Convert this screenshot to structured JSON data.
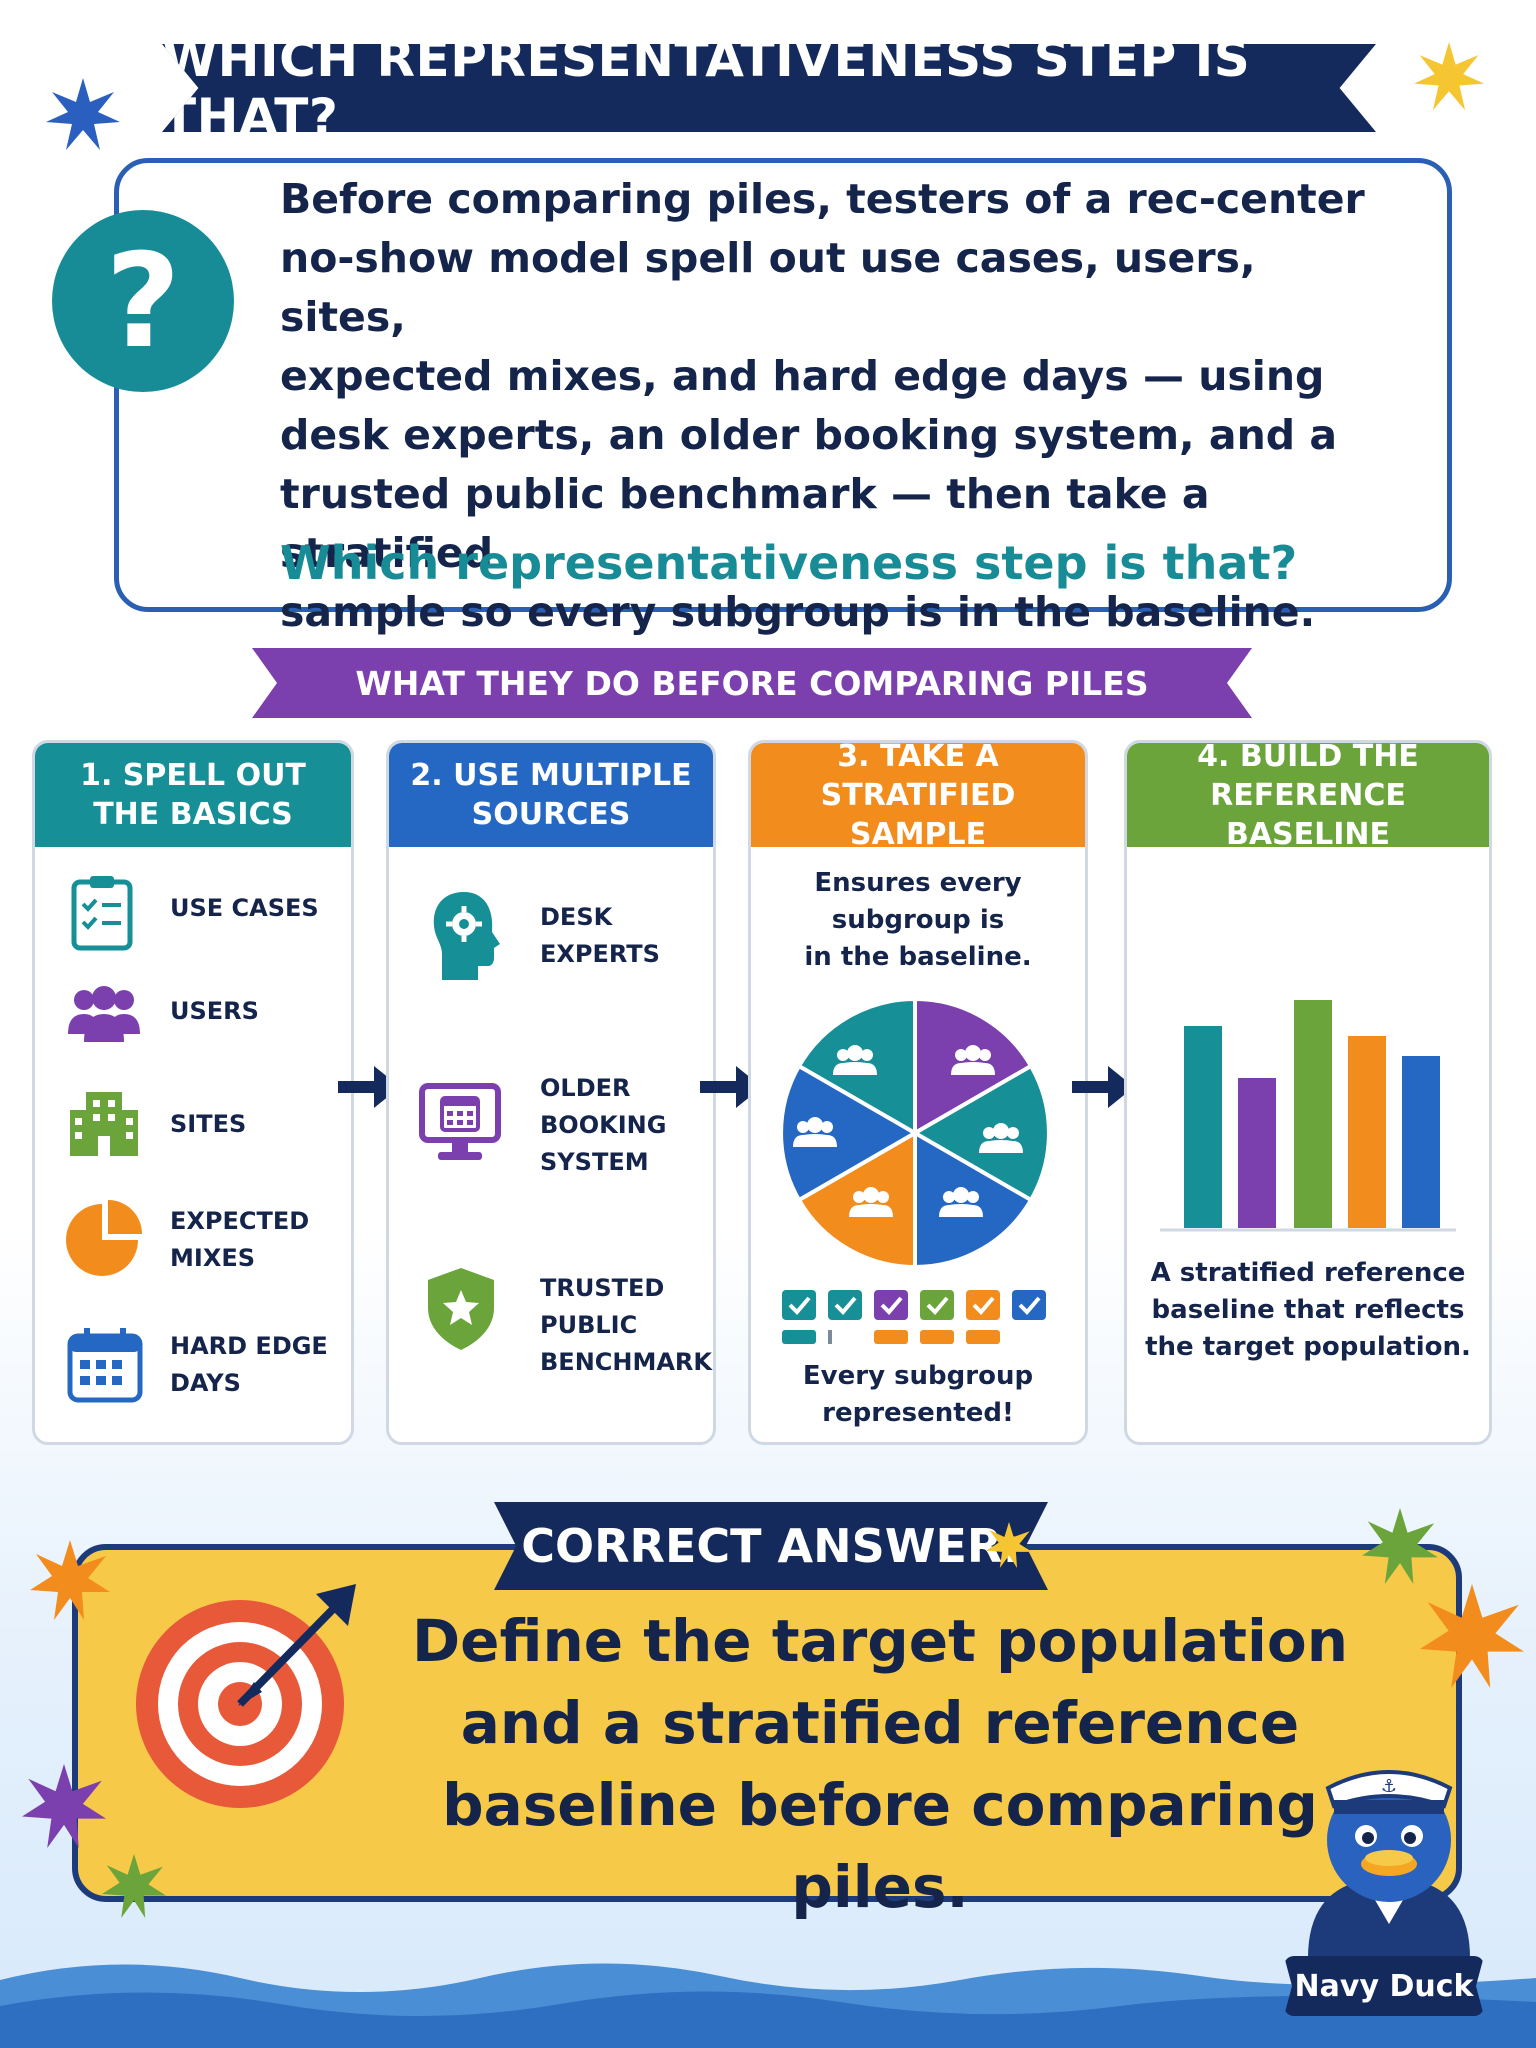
{
  "title": "WHICH REPRESENTATIVENESS STEP IS THAT?",
  "question": {
    "icon": "question-mark-icon",
    "symbol": "?",
    "lines": [
      "Before comparing piles, testers of a rec-center",
      "no-show model spell out use cases, users, sites,",
      "expected mixes, and hard edge days — using",
      "desk experts, an older booking system, and a",
      "trusted public benchmark — then take a stratified",
      "sample so every subgroup is in the baseline."
    ],
    "prompt": "Which representativeness step is that?"
  },
  "section_title": "WHAT THEY DO BEFORE COMPARING PILES",
  "steps": [
    {
      "heading": "1. SPELL OUT\nTHE BASICS",
      "color": "#168f96",
      "items": [
        {
          "icon": "clipboard-checklist-icon",
          "label": "USE CASES"
        },
        {
          "icon": "users-group-icon",
          "label": "USERS"
        },
        {
          "icon": "building-icon",
          "label": "SITES"
        },
        {
          "icon": "pie-chart-icon",
          "label": "EXPECTED\nMIXES"
        },
        {
          "icon": "calendar-icon",
          "label": "HARD EDGE\nDAYS"
        }
      ]
    },
    {
      "heading": "2. USE MULTIPLE\nSOURCES",
      "color": "#2568c4",
      "items": [
        {
          "icon": "expert-head-gear-icon",
          "label": "DESK\nEXPERTS"
        },
        {
          "icon": "monitor-calendar-icon",
          "label": "OLDER\nBOOKING\nSYSTEM"
        },
        {
          "icon": "shield-star-icon",
          "label": "TRUSTED\nPUBLIC\nBENCHMARK"
        }
      ]
    },
    {
      "heading": "3. TAKE A\nSTRATIFIED SAMPLE",
      "color": "#f28c1c",
      "caption_top": "Ensures every\nsubgroup is\nin the baseline.",
      "caption_bottom": "Every subgroup\nrepresented!"
    },
    {
      "heading": "4. BUILD THE\nREFERENCE BASELINE",
      "color": "#6ba43a",
      "caption": "A stratified reference\nbaseline that reflects\nthe target population."
    }
  ],
  "answer": {
    "label": "CORRECT ANSWER:",
    "text": "Define the target population and a stratified reference baseline before comparing piles."
  },
  "mascot": {
    "name": "Navy Duck"
  },
  "colors": {
    "navy": "#152a5c",
    "teal": "#168f96",
    "blue": "#2568c4",
    "orange": "#f28c1c",
    "green": "#6ba43a",
    "purple": "#7b3fae",
    "yellow": "#f7c948"
  }
}
